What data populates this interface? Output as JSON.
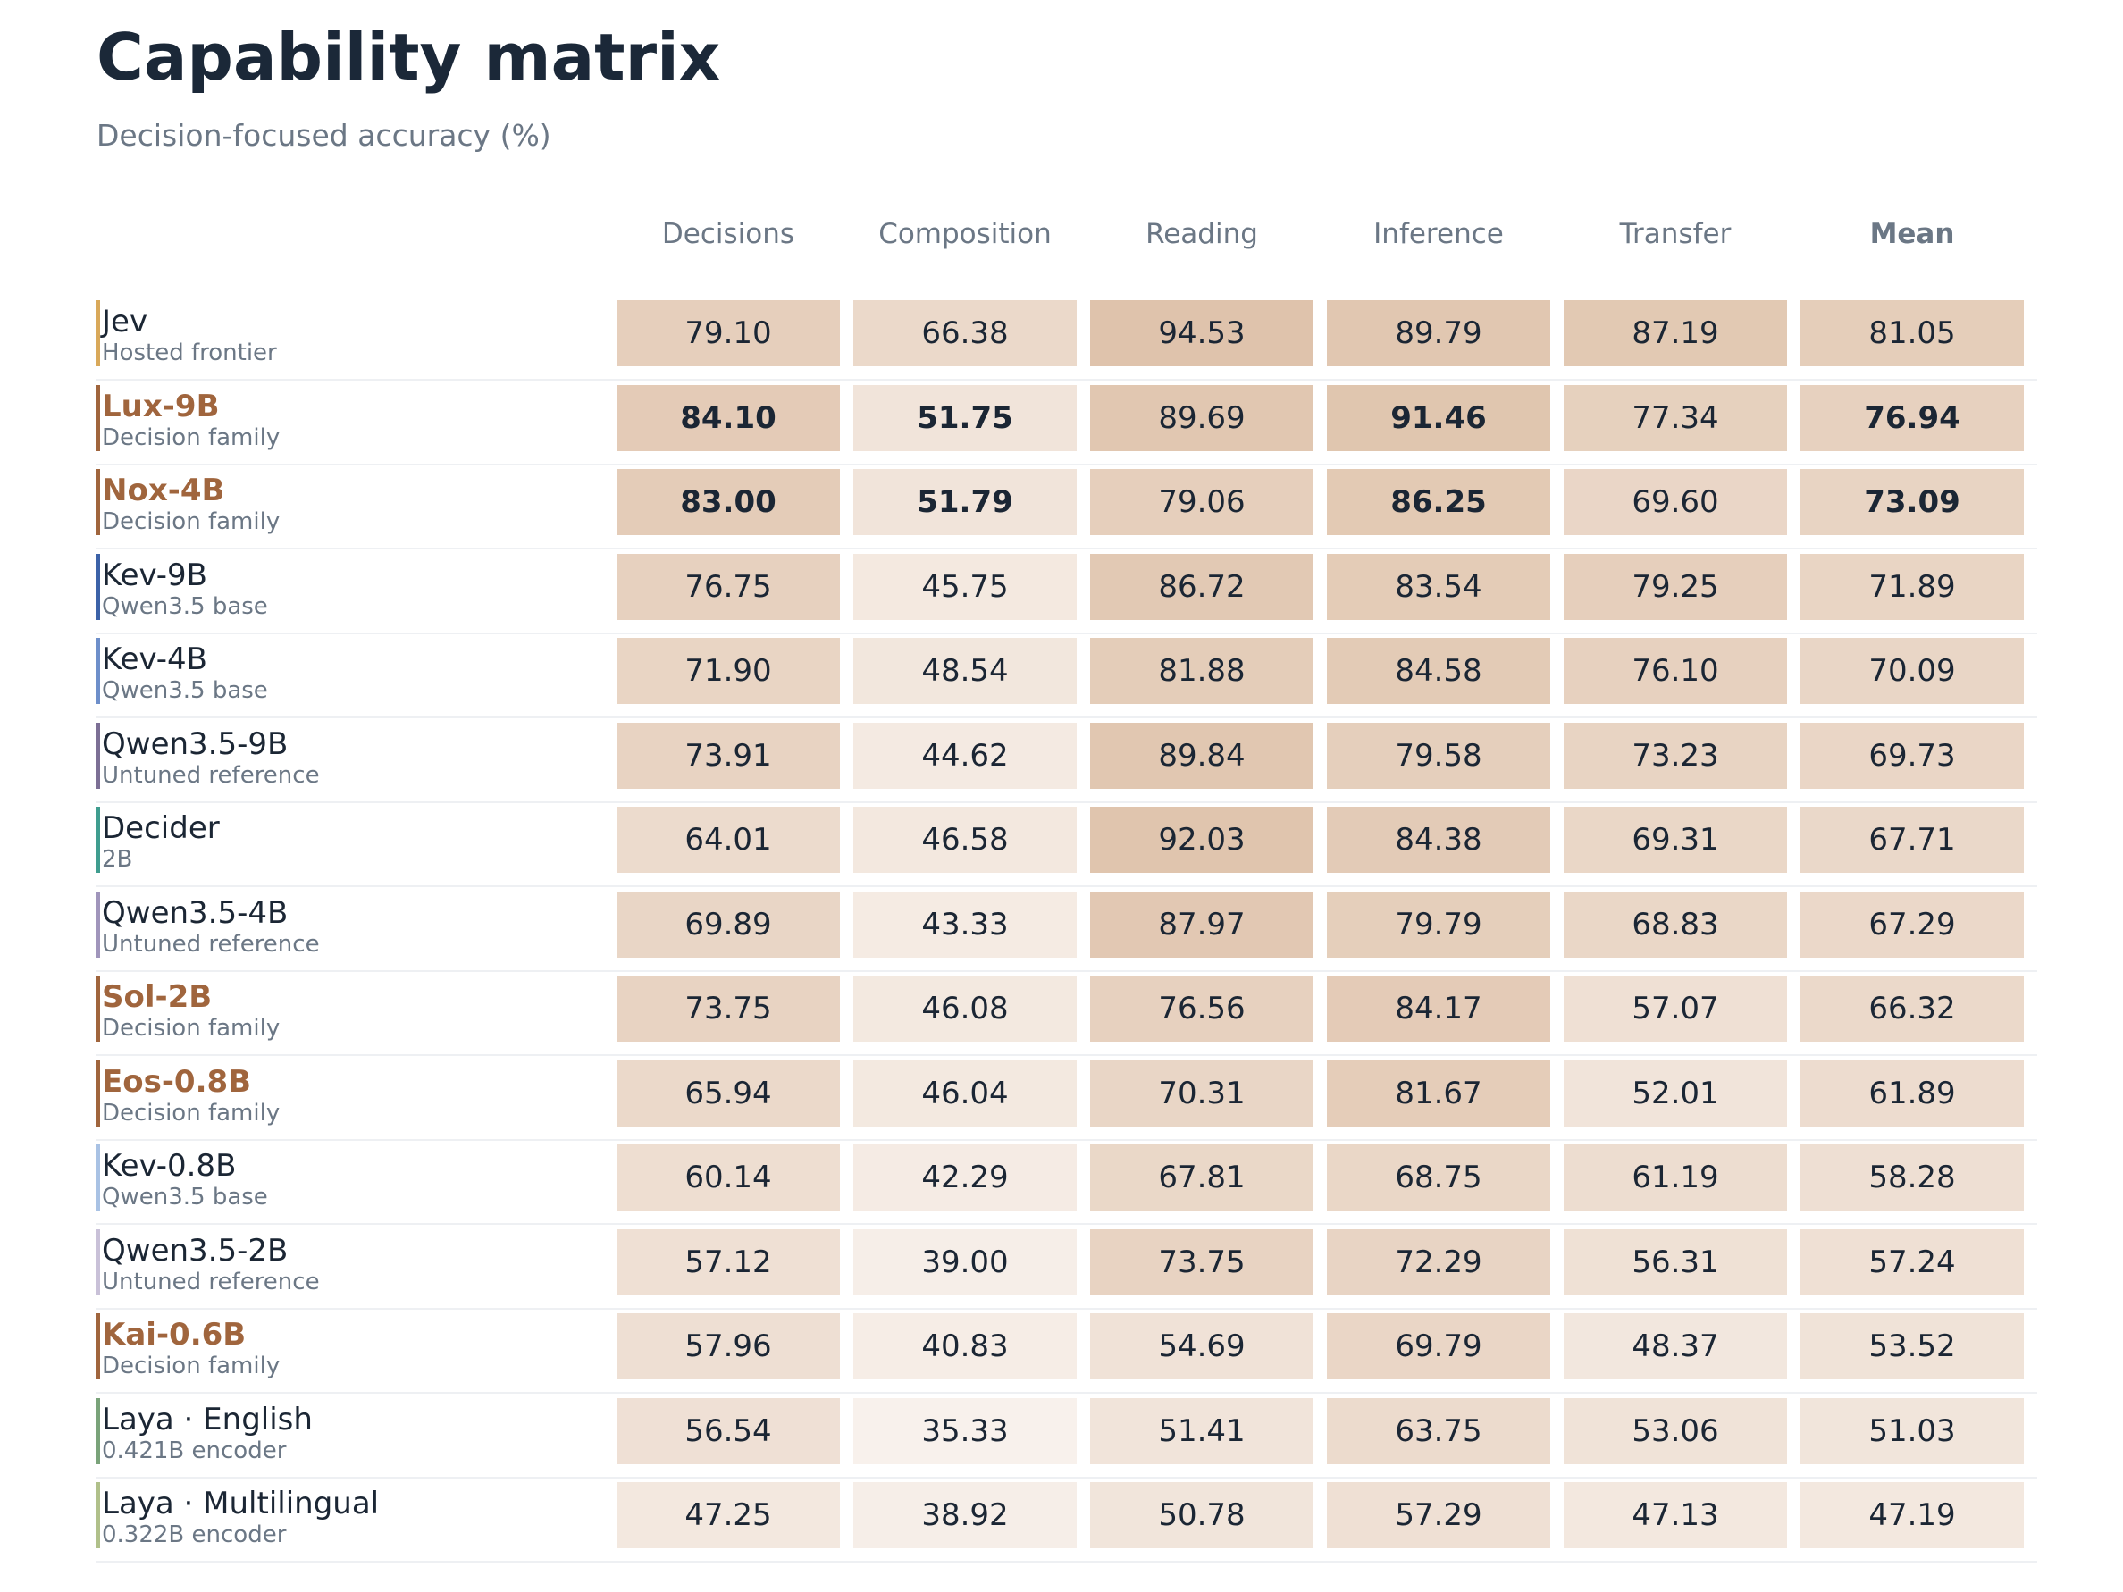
{
  "title": "Capability matrix",
  "subtitle": "Decision-focused accuracy (%)",
  "chart_data": {
    "type": "heatmap",
    "title": "Capability matrix",
    "subtitle": "Decision-focused accuracy (%)",
    "columns": [
      "Decisions",
      "Composition",
      "Reading",
      "Inference",
      "Transfer",
      "Mean"
    ],
    "rows": [
      {
        "name": "Jev",
        "subtitle": "Hosted frontier",
        "group": "frontier",
        "color": "#d9a95a",
        "values": [
          79.1,
          66.38,
          94.53,
          89.79,
          87.19,
          81.05
        ],
        "bold": [
          false,
          false,
          false,
          false,
          false,
          false
        ]
      },
      {
        "name": "Lux-9B",
        "subtitle": "Decision family",
        "group": "family",
        "color": "#a0653d",
        "values": [
          84.1,
          51.75,
          89.69,
          91.46,
          77.34,
          76.94
        ],
        "bold": [
          true,
          true,
          false,
          true,
          false,
          true
        ]
      },
      {
        "name": "Nox-4B",
        "subtitle": "Decision family",
        "group": "family",
        "color": "#a0653d",
        "values": [
          83.0,
          51.79,
          79.06,
          86.25,
          69.6,
          73.09
        ],
        "bold": [
          true,
          true,
          false,
          true,
          false,
          true
        ]
      },
      {
        "name": "Kev-9B",
        "subtitle": "Qwen3.5 base",
        "group": "base",
        "color": "#3c62a8",
        "values": [
          76.75,
          45.75,
          86.72,
          83.54,
          79.25,
          71.89
        ],
        "bold": [
          false,
          false,
          false,
          false,
          false,
          false
        ]
      },
      {
        "name": "Kev-4B",
        "subtitle": "Qwen3.5 base",
        "group": "base",
        "color": "#6e8fca",
        "values": [
          71.9,
          48.54,
          81.88,
          84.58,
          76.1,
          70.09
        ],
        "bold": [
          false,
          false,
          false,
          false,
          false,
          false
        ]
      },
      {
        "name": "Qwen3.5-9B",
        "subtitle": "Untuned reference",
        "group": "reference",
        "color": "#7c6f95",
        "values": [
          73.91,
          44.62,
          89.84,
          79.58,
          73.23,
          69.73
        ],
        "bold": [
          false,
          false,
          false,
          false,
          false,
          false
        ]
      },
      {
        "name": "Decider",
        "subtitle": "2B",
        "group": "decider",
        "color": "#3f9d8f",
        "values": [
          64.01,
          46.58,
          92.03,
          84.38,
          69.31,
          67.71
        ],
        "bold": [
          false,
          false,
          false,
          false,
          false,
          false
        ]
      },
      {
        "name": "Qwen3.5-4B",
        "subtitle": "Untuned reference",
        "group": "reference",
        "color": "#a095bb",
        "values": [
          69.89,
          43.33,
          87.97,
          79.79,
          68.83,
          67.29
        ],
        "bold": [
          false,
          false,
          false,
          false,
          false,
          false
        ]
      },
      {
        "name": "Sol-2B",
        "subtitle": "Decision family",
        "group": "family",
        "color": "#a0653d",
        "values": [
          73.75,
          46.08,
          76.56,
          84.17,
          57.07,
          66.32
        ],
        "bold": [
          false,
          false,
          false,
          false,
          false,
          false
        ]
      },
      {
        "name": "Eos-0.8B",
        "subtitle": "Decision family",
        "group": "family",
        "color": "#a0653d",
        "values": [
          65.94,
          46.04,
          70.31,
          81.67,
          52.01,
          61.89
        ],
        "bold": [
          false,
          false,
          false,
          false,
          false,
          false
        ]
      },
      {
        "name": "Kev-0.8B",
        "subtitle": "Qwen3.5 base",
        "group": "base",
        "color": "#a9c2e4",
        "values": [
          60.14,
          42.29,
          67.81,
          68.75,
          61.19,
          58.28
        ],
        "bold": [
          false,
          false,
          false,
          false,
          false,
          false
        ]
      },
      {
        "name": "Qwen3.5-2B",
        "subtitle": "Untuned reference",
        "group": "reference",
        "color": "#c9c1d8",
        "values": [
          57.12,
          39.0,
          73.75,
          72.29,
          56.31,
          57.24
        ],
        "bold": [
          false,
          false,
          false,
          false,
          false,
          false
        ]
      },
      {
        "name": "Kai-0.6B",
        "subtitle": "Decision family",
        "group": "family",
        "color": "#a0653d",
        "values": [
          57.96,
          40.83,
          54.69,
          69.79,
          48.37,
          53.52
        ],
        "bold": [
          false,
          false,
          false,
          false,
          false,
          false
        ]
      },
      {
        "name": "Laya · English",
        "subtitle": "0.421B encoder",
        "group": "encoder",
        "color": "#7aa37a",
        "values": [
          56.54,
          35.33,
          51.41,
          63.75,
          53.06,
          51.03
        ],
        "bold": [
          false,
          false,
          false,
          false,
          false,
          false
        ]
      },
      {
        "name": "Laya · Multilingual",
        "subtitle": "0.322B encoder",
        "group": "encoder",
        "color": "#b0c08a",
        "values": [
          47.25,
          38.92,
          50.78,
          57.29,
          47.13,
          47.19
        ],
        "bold": [
          false,
          false,
          false,
          false,
          false,
          false
        ]
      }
    ],
    "color_scale": {
      "low": "#f8f1ec",
      "high": "#dfc3ab",
      "min": 35,
      "max": 95
    },
    "family_label_color": "#a0653d"
  }
}
